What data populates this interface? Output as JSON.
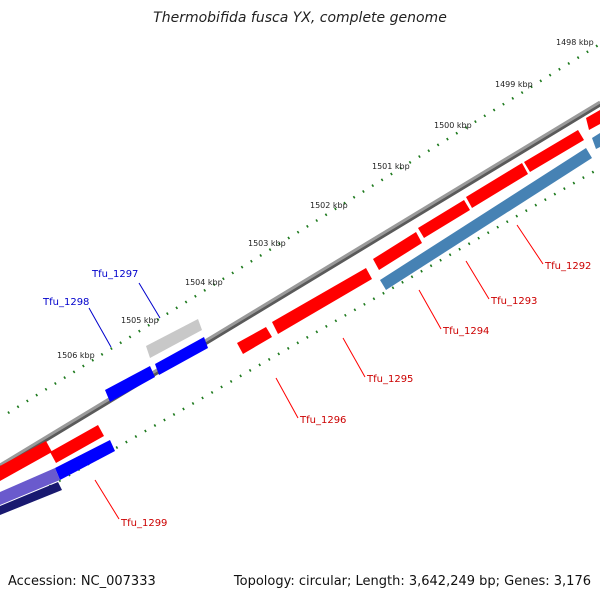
{
  "title": "Thermobifida fusca YX, complete genome",
  "footer": {
    "accession": "Accession: NC_007333",
    "stats": "Topology: circular; Length: 3,642,249 bp; Genes: 3,176"
  },
  "colors": {
    "backbone": "#808080",
    "ticks": "#1e7a1e",
    "forward_gene": "#ff0000",
    "reverse_gene": "#0000ff",
    "reverse_gene_alt": "#4682b4",
    "pseudo_gene": "#c0c0c0",
    "label_red": "#cc0000",
    "label_blue": "#0000cc"
  },
  "kbp_markers": [
    "1498 kbp",
    "1499 kbp",
    "1500 kbp",
    "1501 kbp",
    "1502 kbp",
    "1503 kbp",
    "1504 kbp",
    "1505 kbp",
    "1506 kbp"
  ],
  "gene_labels": [
    {
      "id": "Tfu_1292",
      "color": "red"
    },
    {
      "id": "Tfu_1293",
      "color": "red"
    },
    {
      "id": "Tfu_1294",
      "color": "red"
    },
    {
      "id": "Tfu_1295",
      "color": "red"
    },
    {
      "id": "Tfu_1296",
      "color": "red"
    },
    {
      "id": "Tfu_1297",
      "color": "blue"
    },
    {
      "id": "Tfu_1298",
      "color": "blue"
    },
    {
      "id": "Tfu_1299",
      "color": "red"
    }
  ]
}
